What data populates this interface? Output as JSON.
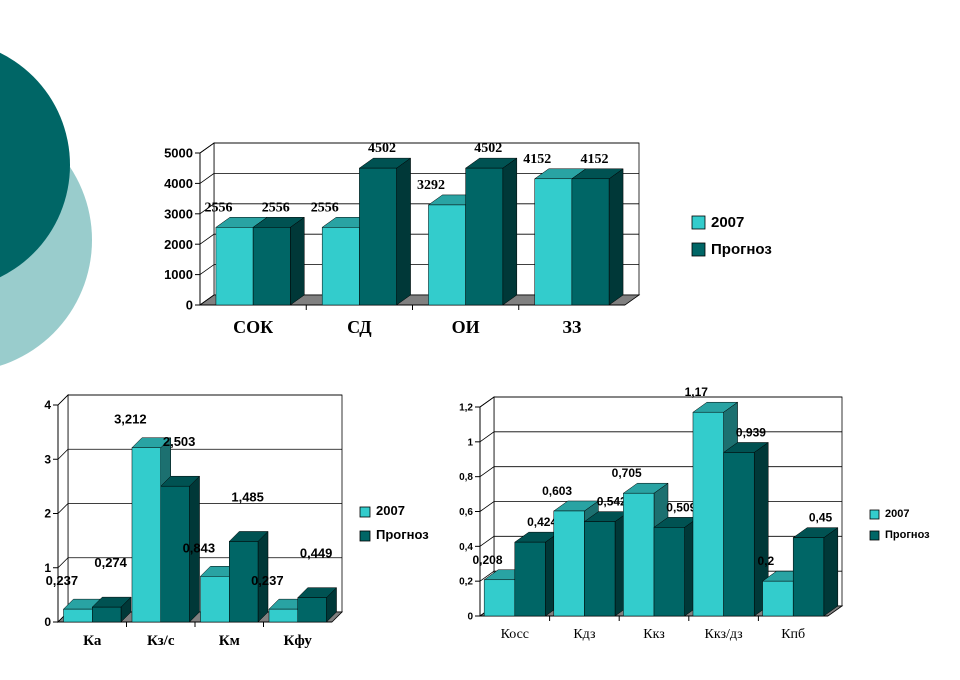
{
  "colors": {
    "series_2007": "#33cccc",
    "series_forecast": "#006666",
    "circle_dark": "#006666",
    "circle_light": "#99cccc"
  },
  "chart_data": [
    {
      "type": "bar",
      "categories": [
        "СОК",
        "СД",
        "ОИ",
        "ЗЗ"
      ],
      "series": [
        {
          "name": "2007",
          "values": [
            2556,
            2556,
            3292,
            4152
          ],
          "labels": [
            "2556",
            "2556",
            "3292",
            "4152"
          ]
        },
        {
          "name": "Прогноз",
          "values": [
            2556,
            4502,
            4502,
            4152
          ],
          "labels": [
            "2556",
            "4502",
            "4502",
            "4152"
          ]
        }
      ],
      "ylim": [
        0,
        5000
      ],
      "yticks": [
        "0",
        "1000",
        "2000",
        "3000",
        "4000",
        "5000"
      ],
      "grid": true,
      "legend": "right"
    },
    {
      "type": "bar",
      "categories": [
        "Ка",
        "Кз/с",
        "Км",
        "Кфу"
      ],
      "series": [
        {
          "name": "2007",
          "values": [
            0.237,
            3.212,
            0.843,
            0.237
          ],
          "labels": [
            "0,237",
            "3,212",
            "0,843",
            "0,237"
          ]
        },
        {
          "name": "Прогноз",
          "values": [
            0.274,
            2.503,
            1.485,
            0.449
          ],
          "labels": [
            "0,274",
            "2,503",
            "1,485",
            "0,449"
          ]
        }
      ],
      "ylim": [
        0,
        4
      ],
      "yticks": [
        "0",
        "1",
        "2",
        "3",
        "4"
      ],
      "grid": true,
      "legend": "right"
    },
    {
      "type": "bar",
      "categories": [
        "Косс",
        "Кдз",
        "Ккз",
        "Ккз/дз",
        "Кпб"
      ],
      "series": [
        {
          "name": "2007",
          "values": [
            0.208,
            0.603,
            0.705,
            1.17,
            0.2
          ],
          "labels": [
            "0,208",
            "0,603",
            "0,705",
            "1,17",
            "0,2"
          ]
        },
        {
          "name": "Прогноз",
          "values": [
            0.424,
            0.542,
            0.509,
            0.939,
            0.45
          ],
          "labels": [
            "0,424",
            "0,542",
            "0,509",
            "0,939",
            "0,45"
          ]
        }
      ],
      "ylim": [
        0,
        1.2
      ],
      "yticks": [
        "0",
        "0,2",
        "0,4",
        "0,6",
        "0,8",
        "1",
        "1,2"
      ],
      "grid": true,
      "legend": "right"
    }
  ]
}
